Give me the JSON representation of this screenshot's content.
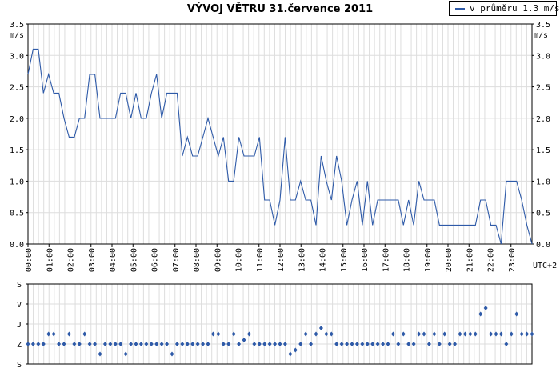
{
  "title": "VÝVOJ VĚTRU  31.července 2011",
  "legend": {
    "label": "v průměru 1.3 m/s",
    "color": "#2e5aa8"
  },
  "chart_data": [
    {
      "type": "line",
      "title": "VÝVOJ VĚTRU  31.července 2011",
      "ylabel": "m/s",
      "xlabel": "UTC+2",
      "ylim": [
        0,
        3.5
      ],
      "yticks": [
        "0.0",
        "0.5",
        "1.0",
        "1.5",
        "2.0",
        "2.5",
        "3.0",
        "3.5"
      ],
      "xticks": [
        "00:00",
        "01:00",
        "02:00",
        "03:00",
        "04:00",
        "05:00",
        "06:00",
        "07:00",
        "08:00",
        "09:00",
        "10:00",
        "11:00",
        "12:00",
        "13:00",
        "14:00",
        "15:00",
        "16:00",
        "17:00",
        "18:00",
        "19:00",
        "20:00",
        "21:00",
        "22:00",
        "23:00"
      ],
      "x_range_hours": [
        0,
        24
      ],
      "grid": true,
      "series": [
        {
          "name": "v průměru 1.3 m/s",
          "color": "#2e5aa8",
          "values": [
            2.7,
            3.1,
            3.1,
            2.4,
            2.7,
            2.4,
            2.4,
            2.0,
            1.7,
            1.7,
            2.0,
            2.0,
            2.7,
            2.7,
            2.0,
            2.0,
            2.0,
            2.0,
            2.4,
            2.4,
            2.0,
            2.4,
            2.0,
            2.0,
            2.4,
            2.7,
            2.0,
            2.4,
            2.4,
            2.4,
            1.4,
            1.7,
            1.4,
            1.4,
            1.7,
            2.0,
            1.7,
            1.4,
            1.7,
            1.0,
            1.0,
            1.7,
            1.4,
            1.4,
            1.4,
            1.7,
            0.7,
            0.7,
            0.3,
            0.7,
            1.7,
            0.7,
            0.7,
            1.0,
            0.7,
            0.7,
            0.3,
            1.4,
            1.0,
            0.7,
            1.4,
            1.0,
            0.3,
            0.7,
            1.0,
            0.3,
            1.0,
            0.3,
            0.7,
            0.7,
            0.7,
            0.7,
            0.7,
            0.3,
            0.7,
            0.3,
            1.0,
            0.7,
            0.7,
            0.7,
            0.3,
            0.3,
            0.3,
            0.3,
            0.3,
            0.3,
            0.3,
            0.3,
            0.7,
            0.7,
            0.3,
            0.3,
            0.0,
            1.0,
            1.0,
            1.0,
            0.7,
            0.3,
            0.0
          ]
        }
      ]
    },
    {
      "type": "scatter",
      "title": "",
      "ylabel": "",
      "categories": [
        "S",
        "V",
        "J",
        "Z",
        "S"
      ],
      "x_range_hours": [
        0,
        24
      ],
      "grid": true,
      "series": [
        {
          "name": "",
          "color": "#2e5aa8",
          "values": [
            0,
            0,
            0,
            0,
            0.5,
            0.5,
            0,
            0,
            0.5,
            0,
            0,
            0.5,
            0,
            0,
            -0.5,
            0,
            0,
            0,
            0,
            -0.5,
            0,
            0,
            0,
            0,
            0,
            0,
            0,
            0,
            -0.5,
            0,
            0,
            0,
            0,
            0,
            0,
            0,
            0.5,
            0.5,
            0,
            0,
            0.5,
            0,
            0.2,
            0.5,
            0,
            0,
            0,
            0,
            0,
            0,
            0,
            -0.5,
            -0.3,
            0,
            0.5,
            0,
            0.5,
            0.8,
            0.5,
            0.5,
            0,
            0,
            0,
            0,
            0,
            0,
            0,
            0,
            0,
            0,
            0,
            0.5,
            0,
            0.5,
            0,
            0,
            0.5,
            0.5,
            0,
            0.5,
            0,
            0.5,
            0,
            0,
            0.5,
            0.5,
            0.5,
            0.5,
            1.5,
            1.8,
            0.5,
            0.5,
            0.5,
            0,
            0.5,
            1.5,
            0.5,
            0.5,
            0.5
          ]
        }
      ]
    }
  ]
}
